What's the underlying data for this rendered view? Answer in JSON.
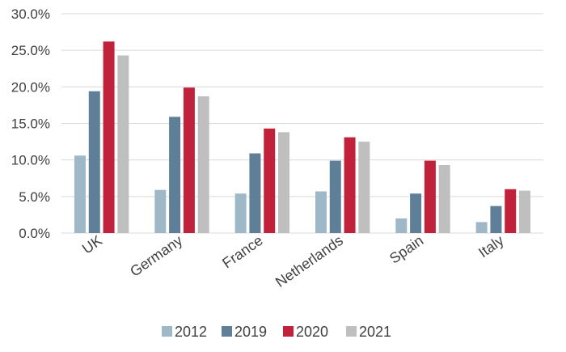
{
  "chart_data": {
    "type": "bar",
    "categories": [
      "UK",
      "Germany",
      "France",
      "Netherlands",
      "Spain",
      "Italy"
    ],
    "series": [
      {
        "name": "2012",
        "color": "#9fb8c8",
        "values": [
          10.6,
          5.9,
          5.4,
          5.7,
          2.0,
          1.5
        ]
      },
      {
        "name": "2019",
        "color": "#5f7f98",
        "values": [
          19.4,
          15.9,
          10.9,
          9.9,
          5.4,
          3.7
        ]
      },
      {
        "name": "2020",
        "color": "#c0223b",
        "values": [
          26.2,
          19.9,
          14.3,
          13.1,
          9.9,
          6.0
        ]
      },
      {
        "name": "2021",
        "color": "#bfbfbf",
        "values": [
          24.3,
          18.7,
          13.8,
          12.5,
          9.3,
          5.8
        ]
      }
    ],
    "ylim": [
      0,
      30
    ],
    "yticks": [
      "0.0%",
      "5.0%",
      "10.0%",
      "15.0%",
      "20.0%",
      "25.0%",
      "30.0%"
    ],
    "grid": true,
    "legend_position": "bottom",
    "title": "",
    "xlabel": "",
    "ylabel": ""
  }
}
